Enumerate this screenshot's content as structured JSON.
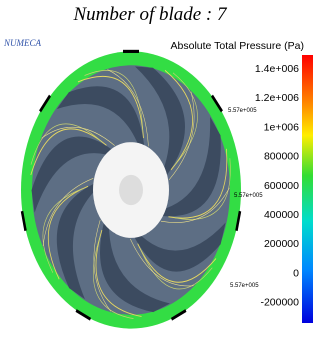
{
  "title": "Number of blade : 7",
  "logo": "NUMECA",
  "colorbar": {
    "title": "Absolute Total Pressure (Pa)",
    "labels": [
      "1.4e+006",
      "1.2e+006",
      "1e+006",
      "800000",
      "600000",
      "400000",
      "200000",
      "0",
      "-200000"
    ]
  },
  "annotations": [
    "5.57e+005",
    "5.57e+005",
    "5.57e+005"
  ]
}
